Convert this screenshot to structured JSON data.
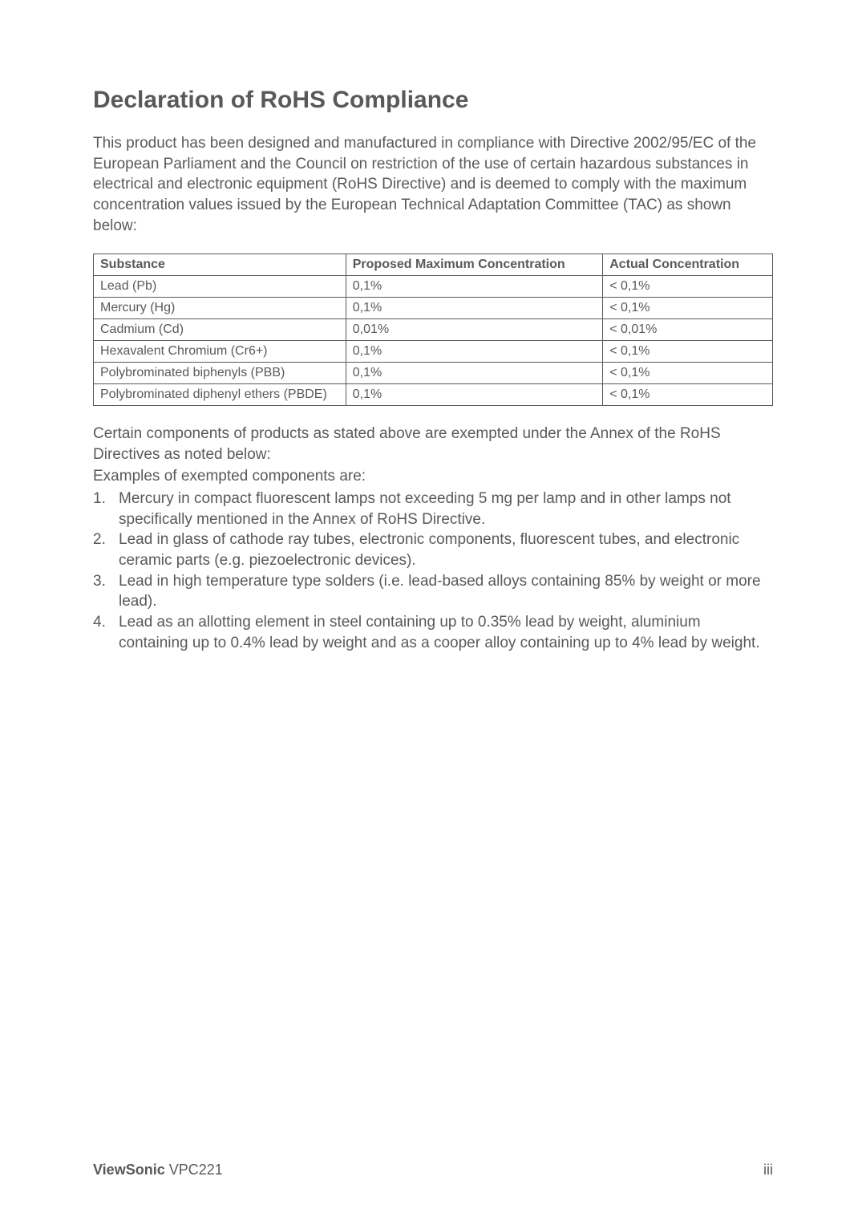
{
  "title": "Declaration of RoHS Compliance",
  "intro": "This product has been designed and manufactured in compliance with Directive 2002/95/EC of the European Parliament and the Council on restriction of the use of certain hazardous substances in electrical and electronic equipment (RoHS Directive) and is deemed to comply with the maximum concentration values issued by the European Technical Adaptation Committee (TAC) as shown below:",
  "table": {
    "columns": [
      "Substance",
      "Proposed Maximum Concentration",
      "Actual Concentration"
    ],
    "rows": [
      [
        "Lead (Pb)",
        "0,1%",
        "< 0,1%"
      ],
      [
        "Mercury (Hg)",
        "0,1%",
        "< 0,1%"
      ],
      [
        "Cadmium (Cd)",
        "0,01%",
        "< 0,01%"
      ],
      [
        "Hexavalent Chromium (Cr6+)",
        "0,1%",
        "< 0,1%"
      ],
      [
        "Polybrominated biphenyls (PBB)",
        "0,1%",
        "< 0,1%"
      ],
      [
        "Polybrominated diphenyl ethers (PBDE)",
        "0,1%",
        "< 0,1%"
      ]
    ]
  },
  "notes_intro1": "Certain components of products as stated above are exempted under the Annex of the RoHS Directives as noted below:",
  "notes_intro2": "Examples of exempted components are:",
  "exemptions": [
    "Mercury in compact fluorescent lamps not exceeding 5 mg per lamp and in other lamps not specifically mentioned in the Annex of RoHS Directive.",
    "Lead in glass of cathode ray tubes, electronic components, fluorescent tubes, and electronic ceramic parts (e.g. piezoelectronic devices).",
    "Lead in high temperature type solders (i.e. lead-based alloys containing 85% by weight or more lead).",
    "Lead as an allotting element in steel containing up to 0.35% lead by weight, aluminium containing up to 0.4% lead by weight and as a cooper alloy containing up to 4% lead by weight."
  ],
  "footer": {
    "brand": "ViewSonic",
    "model": "VPC221",
    "page": "iii"
  }
}
